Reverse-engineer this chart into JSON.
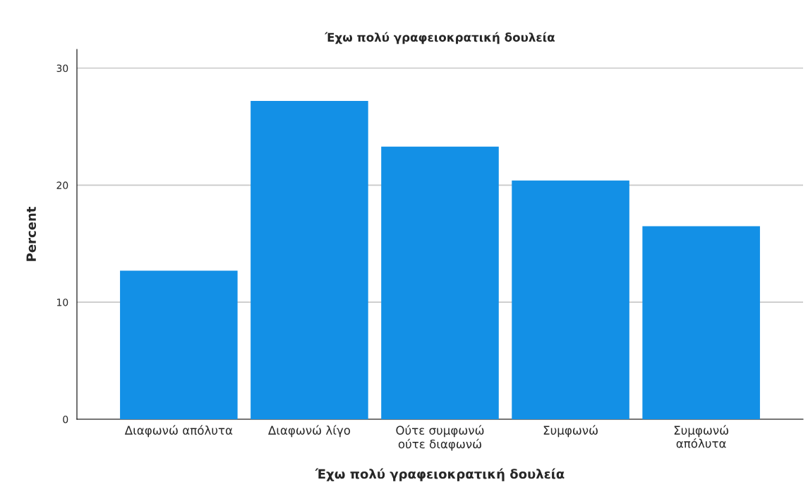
{
  "chart_data": {
    "type": "bar",
    "title": "Έχω πολύ γραφειοκρατική δουλεία",
    "xlabel": "Έχω πολύ γραφειοκρατική δουλεία",
    "ylabel": "Percent",
    "categories": [
      "Διαφωνώ απόλυτα",
      "Διαφωνώ λίγο",
      "Ούτε συμφωνώ\nούτε διαφωνώ",
      "Συμφωνώ",
      "Συμφωνώ\nαπόλυτα"
    ],
    "values": [
      12.7,
      27.2,
      23.3,
      20.4,
      16.5
    ],
    "color": "#1390e6",
    "ylim": [
      0,
      31.6
    ],
    "yticks": [
      0,
      10,
      20,
      30
    ],
    "grid": "y",
    "legend": false
  }
}
